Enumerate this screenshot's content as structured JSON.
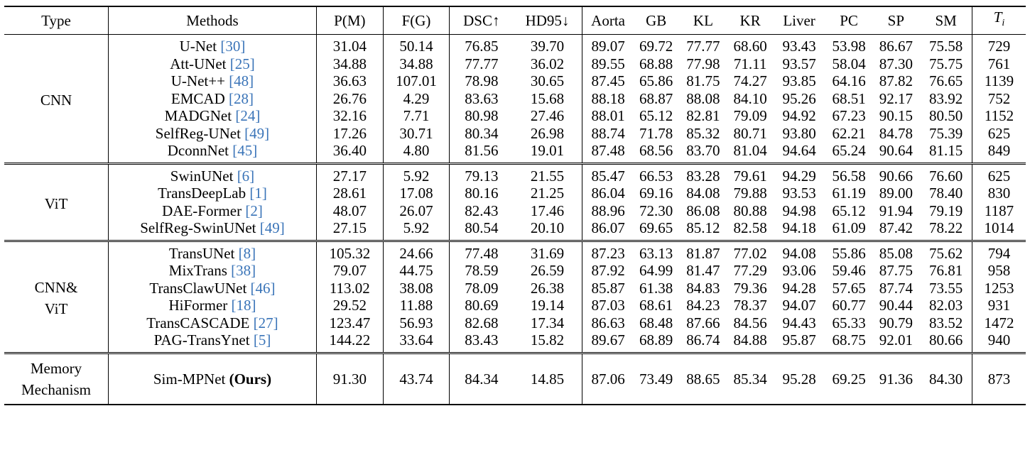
{
  "table": {
    "headers": [
      "Type",
      "Methods",
      "P(M)",
      "F(G)",
      "DSC↑",
      "HD95↓",
      "Aorta",
      "GB",
      "KL",
      "KR",
      "Liver",
      "PC",
      "SP",
      "SM"
    ],
    "ti_header": {
      "base": "T",
      "sub": "i"
    },
    "groups": [
      {
        "type": "CNN",
        "rows": [
          {
            "method": "U-Net",
            "ref": "[30]",
            "values": [
              "31.04",
              "50.14",
              "76.85",
              "39.70",
              "89.07",
              "69.72",
              "77.77",
              "68.60",
              "93.43",
              "53.98",
              "86.67",
              "75.58",
              "729"
            ],
            "bold": []
          },
          {
            "method": "Att-UNet",
            "ref": "[25]",
            "values": [
              "34.88",
              "34.88",
              "77.77",
              "36.02",
              "89.55",
              "68.88",
              "77.98",
              "71.11",
              "93.57",
              "58.04",
              "87.30",
              "75.75",
              "761"
            ],
            "bold": []
          },
          {
            "method": "U-Net++",
            "ref": "[48]",
            "values": [
              "36.63",
              "107.01",
              "78.98",
              "30.65",
              "87.45",
              "65.86",
              "81.75",
              "74.27",
              "93.85",
              "64.16",
              "87.82",
              "76.65",
              "1139"
            ],
            "bold": []
          },
          {
            "method": "EMCAD",
            "ref": "[28]",
            "values": [
              "26.76",
              "4.29",
              "83.63",
              "15.68",
              "88.18",
              "68.87",
              "88.08",
              "84.10",
              "95.26",
              "68.51",
              "92.17",
              "83.92",
              "752"
            ],
            "bold": [
              10
            ]
          },
          {
            "method": "MADGNet",
            "ref": "[24]",
            "values": [
              "32.16",
              "7.71",
              "80.98",
              "27.46",
              "88.01",
              "65.12",
              "82.81",
              "79.09",
              "94.92",
              "67.23",
              "90.15",
              "80.50",
              "1152"
            ],
            "bold": []
          },
          {
            "method": "SelfReg-UNet",
            "ref": "[49]",
            "values": [
              "17.26",
              "30.71",
              "80.34",
              "26.98",
              "88.74",
              "71.78",
              "85.32",
              "80.71",
              "93.80",
              "62.21",
              "84.78",
              "75.39",
              "625"
            ],
            "bold": []
          },
          {
            "method": "DconnNet",
            "ref": "[45]",
            "values": [
              "36.40",
              "4.80",
              "81.56",
              "19.01",
              "87.48",
              "68.56",
              "83.70",
              "81.04",
              "94.64",
              "65.24",
              "90.64",
              "81.15",
              "849"
            ],
            "bold": []
          }
        ]
      },
      {
        "type": "ViT",
        "rows": [
          {
            "method": "SwinUNet",
            "ref": "[6]",
            "values": [
              "27.17",
              "5.92",
              "79.13",
              "21.55",
              "85.47",
              "66.53",
              "83.28",
              "79.61",
              "94.29",
              "56.58",
              "90.66",
              "76.60",
              "625"
            ],
            "bold": []
          },
          {
            "method": "TransDeepLab",
            "ref": "[1]",
            "values": [
              "28.61",
              "17.08",
              "80.16",
              "21.25",
              "86.04",
              "69.16",
              "84.08",
              "79.88",
              "93.53",
              "61.19",
              "89.00",
              "78.40",
              "830"
            ],
            "bold": []
          },
          {
            "method": "DAE-Former",
            "ref": "[2]",
            "values": [
              "48.07",
              "26.07",
              "82.43",
              "17.46",
              "88.96",
              "72.30",
              "86.08",
              "80.88",
              "94.98",
              "65.12",
              "91.94",
              "79.19",
              "1187"
            ],
            "bold": []
          },
          {
            "method": "SelfReg-SwinUNet",
            "ref": "[49]",
            "values": [
              "27.15",
              "5.92",
              "80.54",
              "20.10",
              "86.07",
              "69.65",
              "85.12",
              "82.58",
              "94.18",
              "61.09",
              "87.42",
              "78.22",
              "1014"
            ],
            "bold": []
          }
        ]
      },
      {
        "type": "CNN& ViT",
        "type_lines": [
          "CNN&",
          "ViT"
        ],
        "rows": [
          {
            "method": "TransUNet",
            "ref": "[8]",
            "values": [
              "105.32",
              "24.66",
              "77.48",
              "31.69",
              "87.23",
              "63.13",
              "81.87",
              "77.02",
              "94.08",
              "55.86",
              "85.08",
              "75.62",
              "794"
            ],
            "bold": []
          },
          {
            "method": "MixTrans",
            "ref": "[38]",
            "values": [
              "79.07",
              "44.75",
              "78.59",
              "26.59",
              "87.92",
              "64.99",
              "81.47",
              "77.29",
              "93.06",
              "59.46",
              "87.75",
              "76.81",
              "958"
            ],
            "bold": []
          },
          {
            "method": "TransClawUNet",
            "ref": "[46]",
            "values": [
              "113.02",
              "38.08",
              "78.09",
              "26.38",
              "85.87",
              "61.38",
              "84.83",
              "79.36",
              "94.28",
              "57.65",
              "87.74",
              "73.55",
              "1253"
            ],
            "bold": []
          },
          {
            "method": "HiFormer",
            "ref": "[18]",
            "values": [
              "29.52",
              "11.88",
              "80.69",
              "19.14",
              "87.03",
              "68.61",
              "84.23",
              "78.37",
              "94.07",
              "60.77",
              "90.44",
              "82.03",
              "931"
            ],
            "bold": []
          },
          {
            "method": "TransCASCADE",
            "ref": "[27]",
            "values": [
              "123.47",
              "56.93",
              "82.68",
              "17.34",
              "86.63",
              "68.48",
              "87.66",
              "84.56",
              "94.43",
              "65.33",
              "90.79",
              "83.52",
              "1472"
            ],
            "bold": []
          },
          {
            "method": "PAG-TransYnet",
            "ref": "[5]",
            "values": [
              "144.22",
              "33.64",
              "83.43",
              "15.82",
              "89.67",
              "68.89",
              "86.74",
              "84.88",
              "95.87",
              "68.75",
              "92.01",
              "80.66",
              "940"
            ],
            "bold": [
              4,
              8
            ]
          }
        ]
      },
      {
        "type": "Memory Mechanism",
        "type_lines": [
          "Memory",
          "Mechanism"
        ],
        "rows": [
          {
            "method": "Sim-MPNet",
            "ours": "(Ours)",
            "values": [
              "91.30",
              "43.74",
              "84.34",
              "14.85",
              "87.06",
              "73.49",
              "88.65",
              "85.34",
              "95.28",
              "69.25",
              "91.36",
              "84.30",
              "873"
            ],
            "bold": [
              2,
              3,
              5,
              6,
              7,
              9,
              11
            ]
          }
        ]
      }
    ]
  }
}
